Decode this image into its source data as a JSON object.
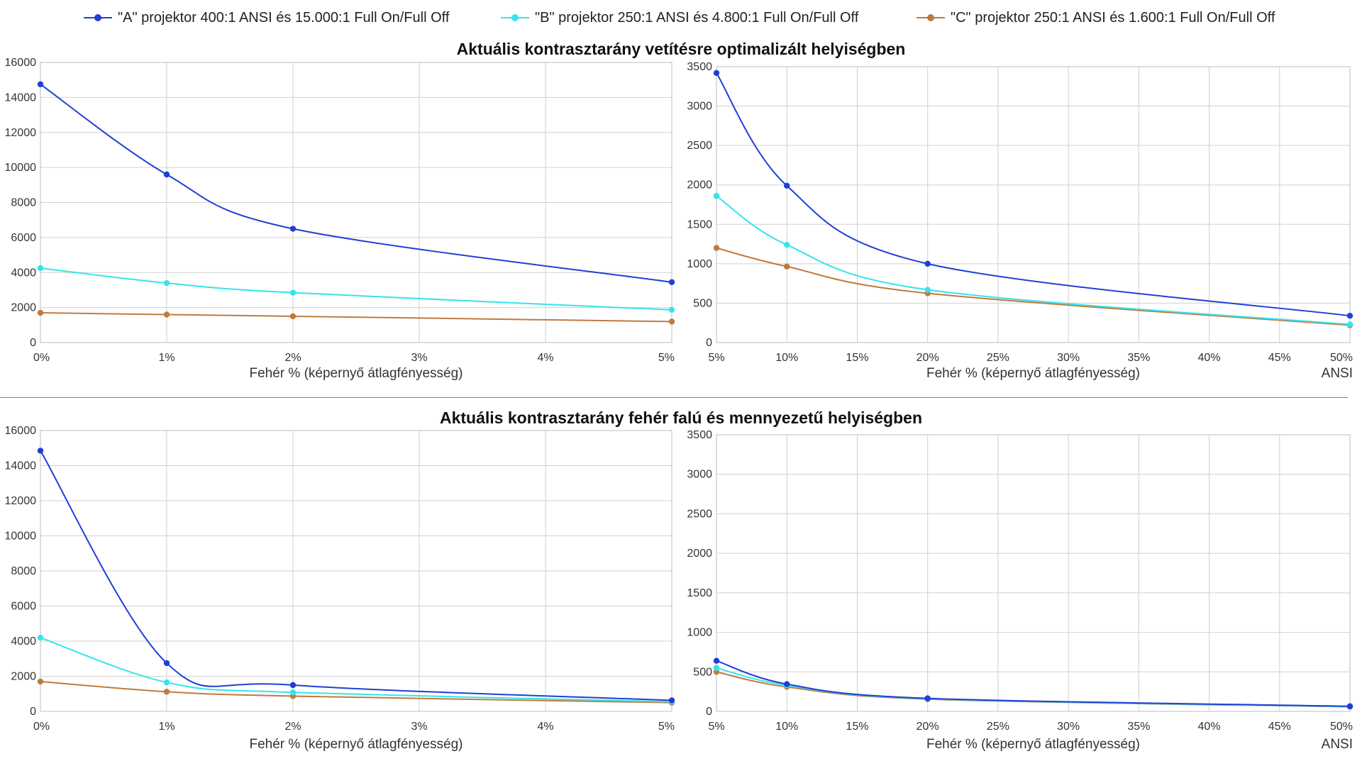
{
  "legend": [
    {
      "name": "\"A\" projektor 400:1 ANSI és 15.000:1 Full On/Full Off",
      "color": "#1f3fd6"
    },
    {
      "name": "\"B\" projektor 250:1 ANSI és 4.800:1 Full On/Full Off",
      "color": "#36e4ea"
    },
    {
      "name": "\"C\" projektor 250:1 ANSI és 1.600:1 Full On/Full Off",
      "color": "#c07a3e"
    }
  ],
  "titles": {
    "top": "Aktuális kontrasztarány vetítésre optimalizált helyiségben",
    "bottom": "Aktuális kontrasztarány fehér falú és mennyezetű helyiségben"
  },
  "chart_data": [
    {
      "type": "line",
      "panel": "top-left",
      "x": [
        0,
        1,
        2,
        5
      ],
      "xticks": [
        "0%",
        "1%",
        "2%",
        "3%",
        "4%",
        "5%"
      ],
      "xlim": [
        0,
        5
      ],
      "ylim": [
        0,
        16000
      ],
      "yticks": [
        0,
        2000,
        4000,
        6000,
        8000,
        10000,
        12000,
        14000,
        16000
      ],
      "xlabel": "Fehér % (képernyő átlagfényesség)",
      "ylabel": "",
      "grid": true,
      "series": [
        {
          "values": [
            14750,
            9600,
            6500,
            3450
          ]
        },
        {
          "values": [
            4250,
            3400,
            2850,
            1870
          ]
        },
        {
          "values": [
            1700,
            1600,
            1500,
            1200
          ]
        }
      ]
    },
    {
      "type": "line",
      "panel": "top-right",
      "x": [
        5,
        10,
        20,
        50
      ],
      "xticks": [
        "5%",
        "10%",
        "15%",
        "20%",
        "25%",
        "30%",
        "35%",
        "40%",
        "45%",
        "50%"
      ],
      "xlim": [
        5,
        50
      ],
      "ylim": [
        0,
        3500
      ],
      "yticks": [
        0,
        500,
        1000,
        1500,
        2000,
        2500,
        3000,
        3500
      ],
      "xlabel": "Fehér % (képernyő átlagfényesség)",
      "xlabel_extra": "ANSI",
      "ylabel": "",
      "grid": true,
      "series": [
        {
          "values": [
            3420,
            1990,
            1000,
            340
          ]
        },
        {
          "values": [
            1860,
            1240,
            670,
            230
          ]
        },
        {
          "values": [
            1200,
            965,
            625,
            220
          ]
        }
      ]
    },
    {
      "type": "line",
      "panel": "bottom-left",
      "x": [
        0,
        1,
        2,
        5
      ],
      "xticks": [
        "0%",
        "1%",
        "2%",
        "3%",
        "4%",
        "5%"
      ],
      "xlim": [
        0,
        5
      ],
      "ylim": [
        0,
        16000
      ],
      "yticks": [
        0,
        2000,
        4000,
        6000,
        8000,
        10000,
        12000,
        14000,
        16000
      ],
      "xlabel": "Fehér % (képernyő átlagfényesség)",
      "ylabel": "",
      "grid": true,
      "series": [
        {
          "values": [
            14850,
            2750,
            1500,
            630
          ]
        },
        {
          "values": [
            4200,
            1650,
            1080,
            550
          ]
        },
        {
          "values": [
            1700,
            1120,
            870,
            500
          ]
        }
      ]
    },
    {
      "type": "line",
      "panel": "bottom-right",
      "x": [
        5,
        10,
        20,
        50
      ],
      "xticks": [
        "5%",
        "10%",
        "15%",
        "20%",
        "25%",
        "30%",
        "35%",
        "40%",
        "45%",
        "50%"
      ],
      "xlim": [
        5,
        50
      ],
      "ylim": [
        0,
        3500
      ],
      "yticks": [
        0,
        500,
        1000,
        1500,
        2000,
        2500,
        3000,
        3500
      ],
      "xlabel": "Fehér % (képernyő átlagfényesség)",
      "xlabel_extra": "ANSI",
      "ylabel": "",
      "grid": true,
      "series": [
        {
          "values": [
            640,
            345,
            165,
            65
          ]
        },
        {
          "values": [
            550,
            330,
            160,
            60
          ]
        },
        {
          "values": [
            500,
            310,
            155,
            58
          ]
        }
      ]
    }
  ]
}
